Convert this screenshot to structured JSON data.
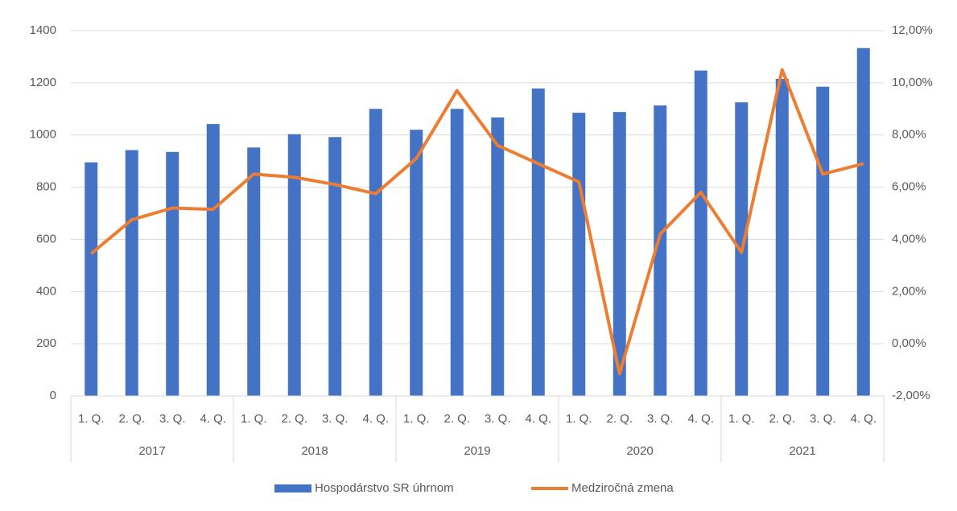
{
  "chart_data": {
    "type": "bar_line",
    "categories": [
      "1. Q.",
      "2. Q.",
      "3. Q.",
      "4. Q.",
      "1. Q.",
      "2. Q.",
      "3. Q.",
      "4. Q.",
      "1. Q.",
      "2. Q.",
      "3. Q.",
      "4. Q.",
      "1. Q.",
      "2. Q.",
      "3. Q.",
      "4. Q.",
      "1. Q.",
      "2. Q.",
      "3. Q.",
      "4. Q."
    ],
    "groups": [
      "2017",
      "2018",
      "2019",
      "2020",
      "2021"
    ],
    "series": [
      {
        "name": "Hospodárstvo SR úhrnom",
        "type": "bar",
        "color": "#4472c4",
        "values": [
          895,
          942,
          935,
          1042,
          952,
          1003,
          992,
          1100,
          1020,
          1100,
          1067,
          1178,
          1085,
          1088,
          1113,
          1247,
          1125,
          1215,
          1185,
          1333
        ]
      },
      {
        "name": "Medziročná zmena",
        "type": "line",
        "axis": "y2",
        "color": "#ed7d31",
        "values": [
          3.45,
          4.75,
          5.2,
          5.15,
          6.5,
          6.38,
          6.1,
          5.75,
          7.1,
          9.7,
          7.6,
          6.9,
          6.2,
          -1.15,
          4.2,
          5.8,
          3.5,
          10.5,
          6.5,
          6.9
        ]
      }
    ],
    "ylim": [
      0,
      1400
    ],
    "yticks": [
      0,
      200,
      400,
      600,
      800,
      1000,
      1200,
      1400
    ],
    "y2lim": [
      -2,
      12
    ],
    "y2ticks": [
      {
        "value": -2,
        "label": "-2,00%"
      },
      {
        "value": 0,
        "label": "0,00%"
      },
      {
        "value": 2,
        "label": "2,00%"
      },
      {
        "value": 4,
        "label": "4,00%"
      },
      {
        "value": 6,
        "label": "6,00%"
      },
      {
        "value": 8,
        "label": "8,00%"
      },
      {
        "value": 10,
        "label": "10,00%"
      },
      {
        "value": 12,
        "label": "12,00%"
      }
    ],
    "grid": true,
    "legend": "bottom"
  }
}
